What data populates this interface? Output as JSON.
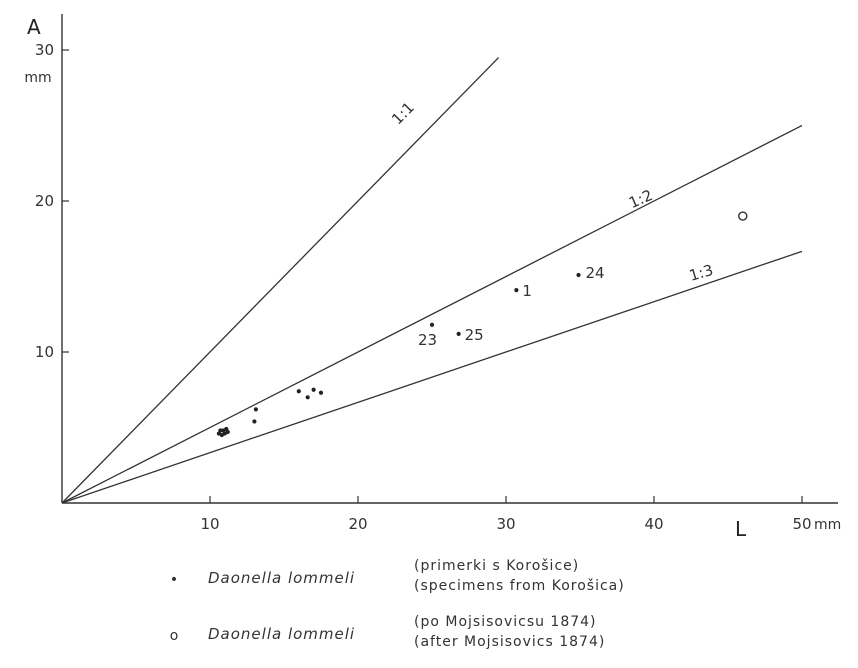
{
  "chart_data": {
    "type": "scatter",
    "title": "",
    "xlabel": "L",
    "ylabel": "A",
    "x_unit": "mm",
    "y_unit": "mm",
    "xlim": [
      0,
      50
    ],
    "ylim": [
      0,
      30
    ],
    "x_ticks": [
      10,
      20,
      30,
      40,
      50
    ],
    "y_ticks": [
      10,
      20,
      30
    ],
    "grid": false,
    "reference_lines": [
      {
        "label": "1:1",
        "slope": 1
      },
      {
        "label": "1:2",
        "slope": 0.5
      },
      {
        "label": "1:3",
        "slope": 0.3333
      }
    ],
    "series": [
      {
        "name": "Daonella lommeli",
        "note": [
          "(primerki s Korošice)",
          "(specimens from Korošica)"
        ],
        "marker": "dot",
        "points": [
          {
            "x": 10.6,
            "y": 4.6
          },
          {
            "x": 10.8,
            "y": 4.5
          },
          {
            "x": 10.9,
            "y": 4.8
          },
          {
            "x": 11.0,
            "y": 4.6
          },
          {
            "x": 11.1,
            "y": 4.9
          },
          {
            "x": 11.2,
            "y": 4.7
          },
          {
            "x": 10.7,
            "y": 4.8
          },
          {
            "x": 13.0,
            "y": 5.4
          },
          {
            "x": 13.1,
            "y": 6.2
          },
          {
            "x": 16.0,
            "y": 7.4
          },
          {
            "x": 16.6,
            "y": 7.0
          },
          {
            "x": 17.0,
            "y": 7.5
          },
          {
            "x": 17.5,
            "y": 7.3
          },
          {
            "x": 25.0,
            "y": 11.8,
            "label": "23"
          },
          {
            "x": 26.8,
            "y": 11.2,
            "label": "25"
          },
          {
            "x": 30.7,
            "y": 14.1,
            "label": "1"
          },
          {
            "x": 34.9,
            "y": 15.1,
            "label": "24"
          }
        ]
      },
      {
        "name": "Daonella lommeli",
        "note": [
          "(po Mojsisovicsu 1874)",
          "(after Mojsisovics 1874)"
        ],
        "marker": "circle",
        "points": [
          {
            "x": 46.0,
            "y": 19.0
          }
        ]
      }
    ]
  },
  "legend": {
    "items": [
      {
        "symbol": "•",
        "name": "Daonella lommeli",
        "note1": "(primerki s Korošice)",
        "note2": "(specimens from Korošica)"
      },
      {
        "symbol": "o",
        "name": "Daonella lommeli",
        "note1": "(po Mojsisovicsu 1874)",
        "note2": "(after Mojsisovics 1874)"
      }
    ]
  }
}
